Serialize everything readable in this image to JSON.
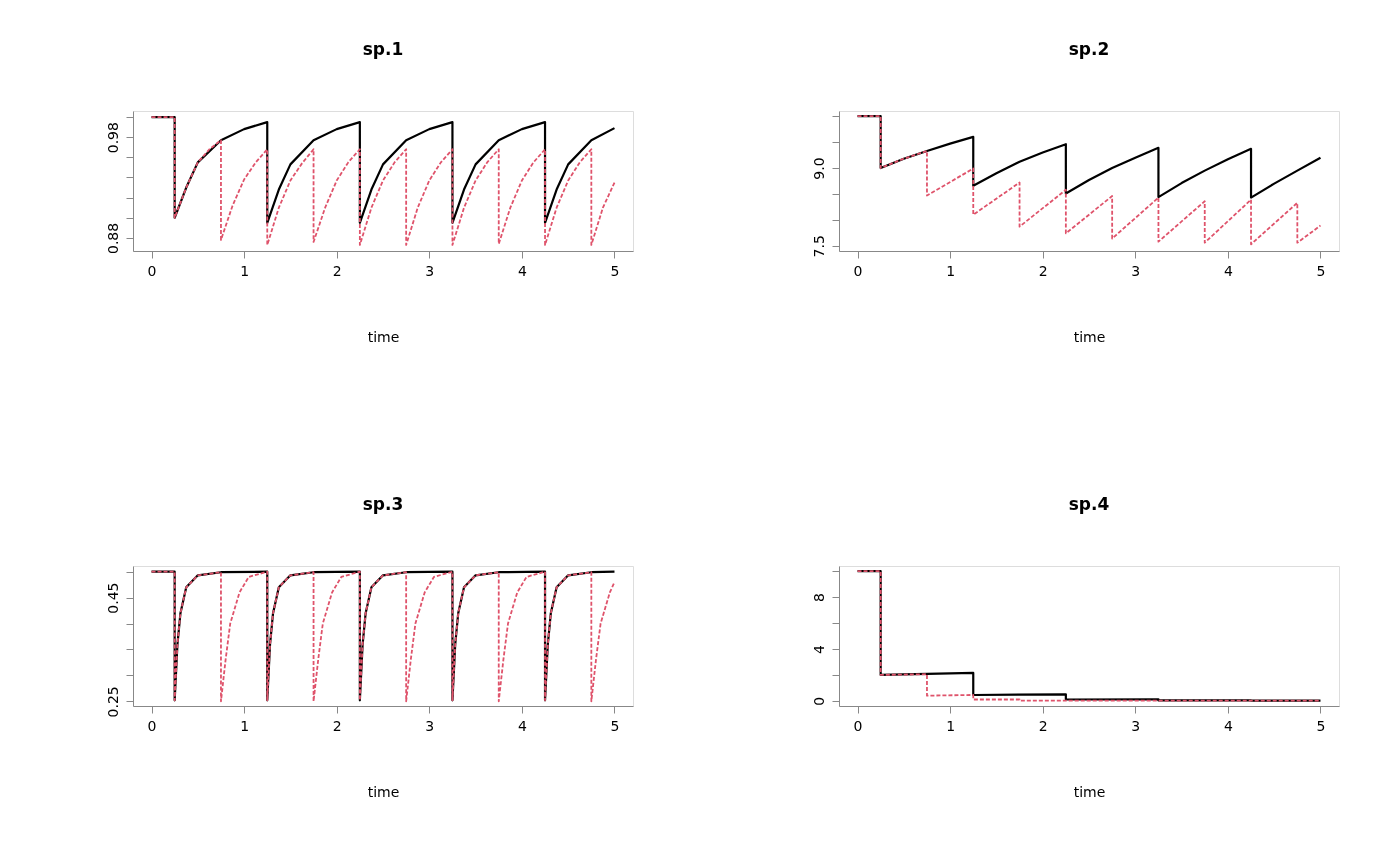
{
  "chart_data": [
    {
      "type": "line",
      "title": "sp.1",
      "xlabel": "time",
      "xlim": [
        -0.2,
        5.2
      ],
      "xticks": [
        0,
        1,
        2,
        3,
        4,
        5
      ],
      "ylim": [
        0.867,
        1.006
      ],
      "yticks": [
        0.88,
        {
          "value": 0.9,
          "label": null
        },
        {
          "value": 0.92,
          "label": null
        },
        {
          "value": 0.94,
          "label": null
        },
        {
          "value": 0.96,
          "label": null
        },
        0.98,
        {
          "value": 1.0,
          "label": null
        }
      ],
      "grid": false,
      "legend": false,
      "series": [
        {
          "color": "#000000",
          "line_style": "solid",
          "x": [
            0,
            0.25,
            0.25,
            0.375,
            0.5,
            0.75,
            1.0,
            1.25,
            1.25,
            1.375,
            1.5,
            1.75,
            2.0,
            2.25,
            2.25,
            2.375,
            2.5,
            2.75,
            3.0,
            3.25,
            3.25,
            3.375,
            3.5,
            3.75,
            4.0,
            4.25,
            4.25,
            4.375,
            4.5,
            4.75,
            5.0
          ],
          "values": [
            1.0,
            1.0,
            0.9,
            0.93,
            0.955,
            0.977,
            0.988,
            0.995,
            0.895,
            0.928,
            0.953,
            0.977,
            0.988,
            0.995,
            0.895,
            0.928,
            0.953,
            0.977,
            0.988,
            0.995,
            0.895,
            0.928,
            0.953,
            0.977,
            0.988,
            0.995,
            0.895,
            0.928,
            0.953,
            0.977,
            0.989
          ]
        },
        {
          "color": "#df536b",
          "line_style": "dashed",
          "x": [
            0,
            0.25,
            0.25,
            0.375,
            0.5,
            0.625,
            0.75,
            0.75,
            0.875,
            1.0,
            1.125,
            1.25,
            1.25,
            1.375,
            1.5,
            1.625,
            1.75,
            1.75,
            1.875,
            2.0,
            2.125,
            2.25,
            2.25,
            2.375,
            2.5,
            2.625,
            2.75,
            2.75,
            2.875,
            3.0,
            3.125,
            3.25,
            3.25,
            3.375,
            3.5,
            3.625,
            3.75,
            3.75,
            3.875,
            4.0,
            4.125,
            4.25,
            4.25,
            4.375,
            4.5,
            4.625,
            4.75,
            4.75,
            4.875,
            5.0
          ],
          "values": [
            1.0,
            1.0,
            0.9,
            0.93,
            0.955,
            0.968,
            0.977,
            0.878,
            0.912,
            0.938,
            0.955,
            0.968,
            0.873,
            0.91,
            0.937,
            0.954,
            0.968,
            0.876,
            0.91,
            0.937,
            0.955,
            0.968,
            0.873,
            0.91,
            0.937,
            0.955,
            0.968,
            0.873,
            0.91,
            0.937,
            0.955,
            0.968,
            0.873,
            0.91,
            0.937,
            0.955,
            0.968,
            0.874,
            0.91,
            0.937,
            0.955,
            0.968,
            0.873,
            0.91,
            0.937,
            0.955,
            0.968,
            0.873,
            0.91,
            0.935
          ]
        }
      ]
    },
    {
      "type": "line",
      "title": "sp.2",
      "xlabel": "time",
      "xlim": [
        -0.2,
        5.2
      ],
      "xticks": [
        0,
        1,
        2,
        3,
        4,
        5
      ],
      "ylim": [
        7.4,
        10.1
      ],
      "yticks": [
        7.5,
        {
          "value": 8,
          "label": null
        },
        {
          "value": 8.5,
          "label": null
        },
        {
          "value": 9,
          "label": "9.0"
        },
        {
          "value": 9.5,
          "label": null
        },
        {
          "value": 10,
          "label": null
        }
      ],
      "grid": false,
      "legend": false,
      "series": [
        {
          "color": "#000000",
          "line_style": "solid",
          "x": [
            0,
            0.25,
            0.25,
            0.5,
            0.75,
            1.0,
            1.25,
            1.25,
            1.5,
            1.75,
            2.0,
            2.25,
            2.25,
            2.5,
            2.75,
            3.0,
            3.25,
            3.25,
            3.5,
            3.75,
            4.0,
            4.25,
            4.25,
            4.5,
            4.75,
            5.0
          ],
          "values": [
            10,
            10,
            9.0,
            9.18,
            9.33,
            9.47,
            9.6,
            8.66,
            8.9,
            9.12,
            9.3,
            9.46,
            8.51,
            8.77,
            9.0,
            9.2,
            9.39,
            8.44,
            8.71,
            8.95,
            9.17,
            9.37,
            8.43,
            8.7,
            8.95,
            9.2
          ]
        },
        {
          "color": "#df536b",
          "line_style": "dashed",
          "x": [
            0,
            0.25,
            0.25,
            0.5,
            0.75,
            0.75,
            1.25,
            1.25,
            1.75,
            1.75,
            2.25,
            2.25,
            2.75,
            2.75,
            3.25,
            3.25,
            3.75,
            3.75,
            4.25,
            4.25,
            4.75,
            4.75,
            5.0
          ],
          "values": [
            10,
            10,
            9.0,
            9.18,
            9.33,
            8.47,
            8.99,
            8.1,
            8.72,
            7.87,
            8.58,
            7.74,
            8.46,
            7.64,
            8.43,
            7.58,
            8.36,
            7.56,
            8.39,
            7.53,
            8.33,
            7.56,
            7.89
          ]
        }
      ]
    },
    {
      "type": "line",
      "title": "sp.3",
      "xlabel": "time",
      "xlim": [
        -0.2,
        5.2
      ],
      "xticks": [
        0,
        1,
        2,
        3,
        4,
        5
      ],
      "ylim": [
        0.241,
        0.511
      ],
      "yticks": [
        0.25,
        {
          "value": 0.3,
          "label": null
        },
        {
          "value": 0.35,
          "label": null
        },
        {
          "value": 0.4,
          "label": null
        },
        0.45,
        {
          "value": 0.5,
          "label": null
        }
      ],
      "grid": false,
      "legend": false,
      "series": [
        {
          "color": "#000000",
          "line_style": "solid",
          "x": [
            0,
            0.25,
            0.25,
            0.28,
            0.3125,
            0.375,
            0.5,
            0.75,
            1.25,
            1.25,
            1.28,
            1.3125,
            1.375,
            1.5,
            1.75,
            2.25,
            2.25,
            2.28,
            2.3125,
            2.375,
            2.5,
            2.75,
            3.25,
            3.25,
            3.28,
            3.3125,
            3.375,
            3.5,
            3.75,
            4.25,
            4.25,
            4.28,
            4.3125,
            4.375,
            4.5,
            4.75,
            5.0
          ],
          "values": [
            0.5,
            0.5,
            0.252,
            0.36,
            0.42,
            0.47,
            0.493,
            0.499,
            0.5,
            0.252,
            0.36,
            0.42,
            0.47,
            0.493,
            0.499,
            0.5,
            0.252,
            0.36,
            0.42,
            0.47,
            0.493,
            0.499,
            0.5,
            0.252,
            0.36,
            0.42,
            0.47,
            0.493,
            0.499,
            0.5,
            0.252,
            0.36,
            0.42,
            0.47,
            0.493,
            0.499,
            0.5
          ]
        },
        {
          "color": "#df536b",
          "line_style": "dashed",
          "x": [
            0,
            0.25,
            0.25,
            0.28,
            0.3125,
            0.375,
            0.5,
            0.75,
            0.75,
            0.8,
            0.85,
            0.95,
            1.05,
            1.25,
            1.25,
            1.28,
            1.3125,
            1.375,
            1.5,
            1.75,
            1.75,
            1.8,
            1.85,
            1.95,
            2.05,
            2.25,
            2.25,
            2.28,
            2.3125,
            2.375,
            2.5,
            2.75,
            2.75,
            2.8,
            2.85,
            2.95,
            3.05,
            3.25,
            3.25,
            3.28,
            3.3125,
            3.375,
            3.5,
            3.75,
            3.75,
            3.8,
            3.85,
            3.95,
            4.05,
            4.25,
            4.25,
            4.28,
            4.3125,
            4.375,
            4.5,
            4.75,
            4.75,
            4.8,
            4.85,
            4.95,
            5.0
          ],
          "values": [
            0.5,
            0.5,
            0.252,
            0.36,
            0.42,
            0.47,
            0.493,
            0.499,
            0.25,
            0.33,
            0.4,
            0.46,
            0.49,
            0.5,
            0.252,
            0.36,
            0.42,
            0.47,
            0.493,
            0.499,
            0.25,
            0.33,
            0.4,
            0.46,
            0.49,
            0.5,
            0.252,
            0.36,
            0.42,
            0.47,
            0.493,
            0.499,
            0.25,
            0.33,
            0.4,
            0.46,
            0.49,
            0.5,
            0.252,
            0.36,
            0.42,
            0.47,
            0.493,
            0.499,
            0.25,
            0.33,
            0.4,
            0.46,
            0.49,
            0.5,
            0.252,
            0.36,
            0.42,
            0.47,
            0.493,
            0.499,
            0.25,
            0.33,
            0.4,
            0.46,
            0.48
          ]
        }
      ]
    },
    {
      "type": "line",
      "title": "sp.4",
      "xlabel": "time",
      "xlim": [
        -0.2,
        5.2
      ],
      "xticks": [
        0,
        1,
        2,
        3,
        4,
        5
      ],
      "ylim": [
        -0.4,
        10.4
      ],
      "yticks": [
        0,
        {
          "value": 2,
          "label": null
        },
        4,
        {
          "value": 6,
          "label": null
        },
        8,
        {
          "value": 10,
          "label": null
        }
      ],
      "grid": false,
      "legend": false,
      "series": [
        {
          "color": "#000000",
          "line_style": "solid",
          "x": [
            0,
            0.25,
            0.25,
            1.25,
            1.25,
            2.25,
            2.25,
            3.25,
            3.25,
            4.25,
            4.25,
            5.0
          ],
          "values": [
            10,
            10,
            2.0,
            2.15,
            0.45,
            0.5,
            0.1,
            0.12,
            0.03,
            0.03,
            0.01,
            0.01
          ]
        },
        {
          "color": "#df536b",
          "line_style": "dashed",
          "x": [
            0,
            0.25,
            0.25,
            0.75,
            0.75,
            1.25,
            1.25,
            1.75,
            1.75,
            2.25,
            2.25,
            5.0
          ],
          "values": [
            10,
            10,
            2.0,
            2.05,
            0.4,
            0.45,
            0.1,
            0.1,
            0.02,
            0.02,
            0.01,
            0.01
          ]
        }
      ]
    }
  ]
}
